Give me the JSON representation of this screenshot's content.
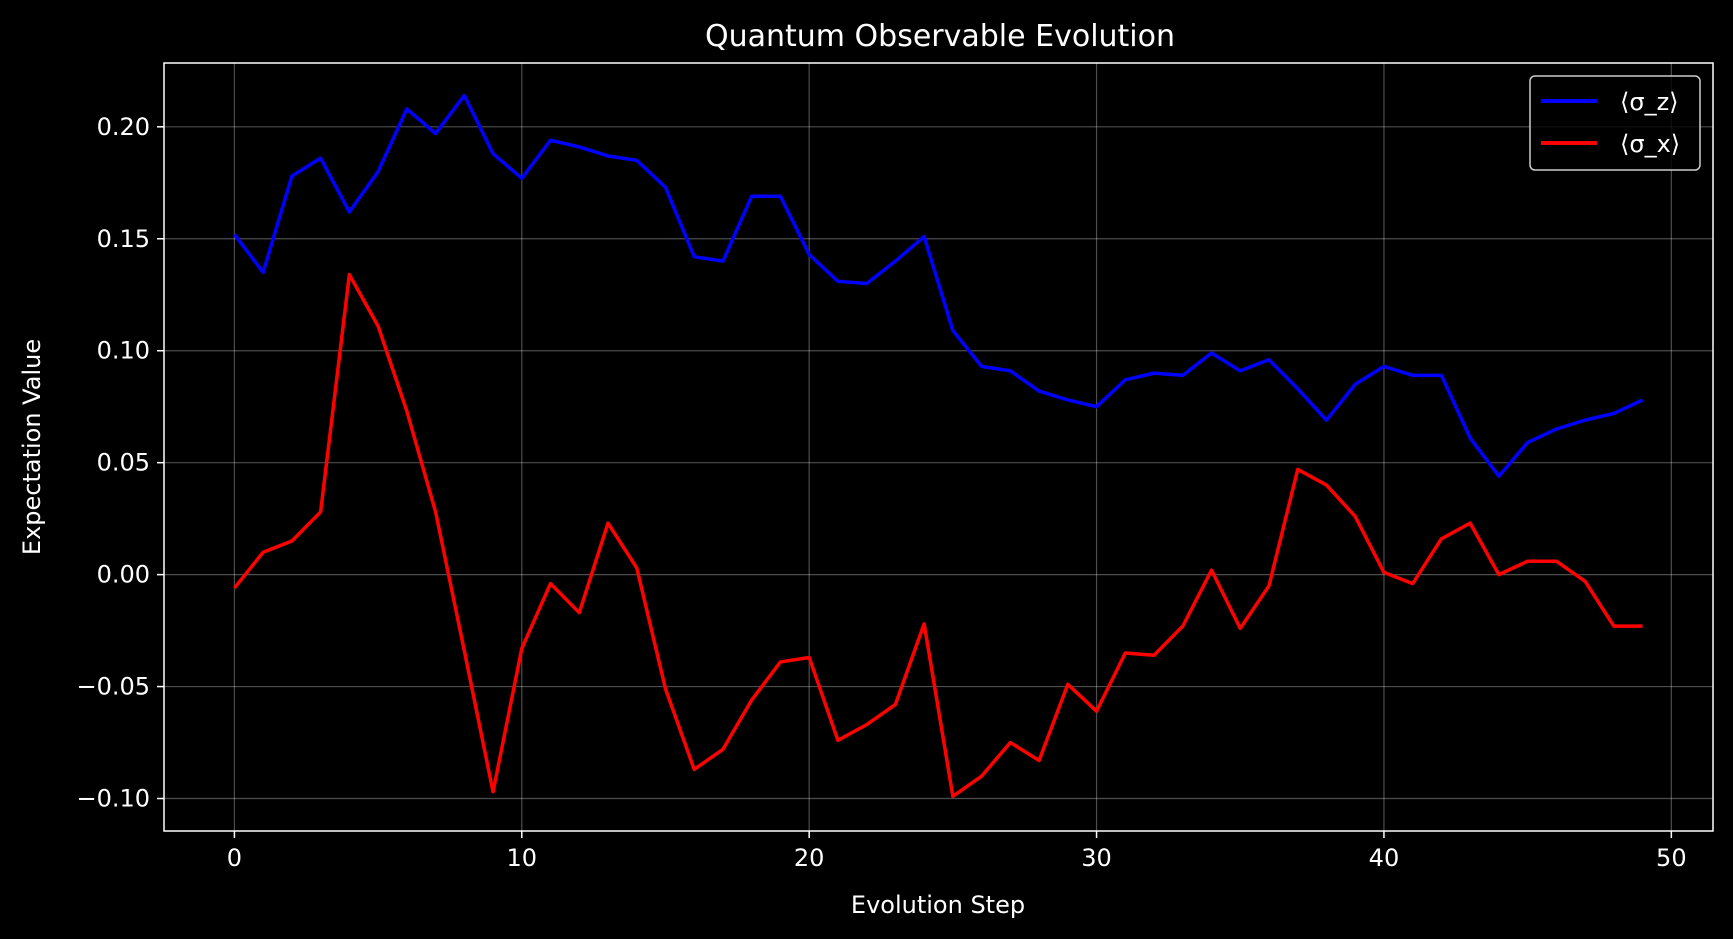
{
  "chart_data": {
    "type": "line",
    "title": "Quantum Observable Evolution",
    "xlabel": "Evolution Step",
    "ylabel": "Expectation Value",
    "xlim": [
      -2.45,
      51.45
    ],
    "ylim": [
      -0.1145,
      0.2285
    ],
    "xticks": [
      0,
      10,
      20,
      30,
      40,
      50
    ],
    "xtick_labels": [
      "0",
      "10",
      "20",
      "30",
      "40",
      "50"
    ],
    "yticks": [
      -0.1,
      -0.05,
      0.0,
      0.05,
      0.1,
      0.15,
      0.2
    ],
    "ytick_labels": [
      "−0.10",
      "−0.05",
      "0.00",
      "0.05",
      "0.10",
      "0.15",
      "0.20"
    ],
    "grid": true,
    "legend_position": "top-right",
    "background": "#000000",
    "x": [
      0,
      1,
      2,
      3,
      4,
      5,
      6,
      7,
      8,
      9,
      10,
      11,
      12,
      13,
      14,
      15,
      16,
      17,
      18,
      19,
      20,
      21,
      22,
      23,
      24,
      25,
      26,
      27,
      28,
      29,
      30,
      31,
      32,
      33,
      34,
      35,
      36,
      37,
      38,
      39,
      40,
      41,
      42,
      43,
      44,
      45,
      46,
      47,
      48,
      49
    ],
    "series": [
      {
        "name": "⟨σ_z⟩",
        "color": "#0000ff",
        "values": [
          0.152,
          0.135,
          0.178,
          0.186,
          0.162,
          0.18,
          0.208,
          0.197,
          0.214,
          0.188,
          0.177,
          0.194,
          0.191,
          0.187,
          0.185,
          0.173,
          0.142,
          0.14,
          0.169,
          0.169,
          0.143,
          0.131,
          0.13,
          0.14,
          0.151,
          0.109,
          0.093,
          0.091,
          0.082,
          0.078,
          0.075,
          0.087,
          0.09,
          0.089,
          0.099,
          0.091,
          0.096,
          0.083,
          0.069,
          0.085,
          0.093,
          0.089,
          0.089,
          0.061,
          0.044,
          0.059,
          0.065,
          0.069,
          0.072,
          0.078
        ]
      },
      {
        "name": "⟨σ_x⟩",
        "color": "#ff0000",
        "values": [
          -0.006,
          0.01,
          0.015,
          0.028,
          0.134,
          0.111,
          0.073,
          0.028,
          -0.034,
          -0.097,
          -0.033,
          -0.004,
          -0.017,
          0.023,
          0.003,
          -0.051,
          -0.087,
          -0.078,
          -0.056,
          -0.039,
          -0.037,
          -0.074,
          -0.067,
          -0.058,
          -0.022,
          -0.099,
          -0.09,
          -0.075,
          -0.083,
          -0.049,
          -0.061,
          -0.035,
          -0.036,
          -0.023,
          0.002,
          -0.024,
          -0.005,
          0.047,
          0.04,
          0.026,
          0.001,
          -0.004,
          0.016,
          0.023,
          0.0,
          0.006,
          0.006,
          -0.003,
          -0.023,
          -0.023
        ]
      }
    ]
  }
}
